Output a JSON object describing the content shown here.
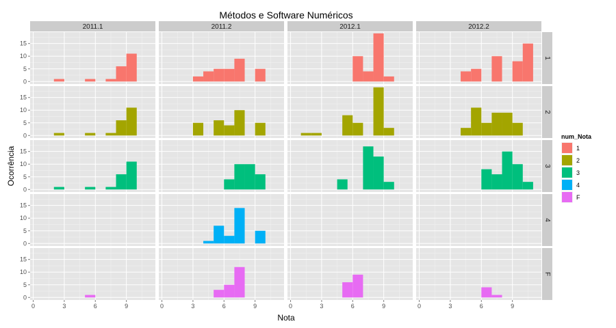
{
  "chart_data": {
    "type": "bar",
    "subtype": "faceted-histogram",
    "title": "Métodos e Software Numéricos",
    "xlabel": "Nota",
    "ylabel": "Ocorrência",
    "xlim": [
      -0.3,
      11.8
    ],
    "ylim": [
      -1,
      19.5
    ],
    "bin_width": 1,
    "x_ticks": [
      0,
      3,
      6,
      9
    ],
    "y_ticks": [
      0,
      5,
      10,
      15
    ],
    "column_facets": [
      "2011.1",
      "2011.2",
      "2012.1",
      "2012.2"
    ],
    "row_facets": [
      "1",
      "2",
      "3",
      "4",
      "F"
    ],
    "legend": {
      "title": "num_Nota",
      "position": "right",
      "entries": [
        {
          "label": "1",
          "color": "#F8766D"
        },
        {
          "label": "2",
          "color": "#A3A500"
        },
        {
          "label": "3",
          "color": "#00BF7D"
        },
        {
          "label": "4",
          "color": "#00B0F6"
        },
        {
          "label": "F",
          "color": "#E76BF3"
        }
      ]
    },
    "panel_background": "#E5E5E5",
    "strip_background": "#CCCCCC",
    "grid": true,
    "series": [
      {
        "row": "1",
        "col": "2011.1",
        "bins": [
          [
            2,
            1
          ],
          [
            5,
            1
          ],
          [
            7,
            1
          ],
          [
            8,
            6
          ],
          [
            9,
            11
          ]
        ]
      },
      {
        "row": "1",
        "col": "2011.2",
        "bins": [
          [
            3,
            2
          ],
          [
            4,
            4
          ],
          [
            5,
            5
          ],
          [
            6,
            5
          ],
          [
            7,
            9
          ],
          [
            9,
            5
          ]
        ]
      },
      {
        "row": "1",
        "col": "2012.1",
        "bins": [
          [
            6,
            10
          ],
          [
            7,
            4
          ],
          [
            8,
            19
          ],
          [
            9,
            2
          ]
        ]
      },
      {
        "row": "1",
        "col": "2012.2",
        "bins": [
          [
            4,
            4
          ],
          [
            5,
            5
          ],
          [
            7,
            10
          ],
          [
            9,
            8
          ],
          [
            10,
            15
          ]
        ]
      },
      {
        "row": "2",
        "col": "2011.1",
        "bins": [
          [
            2,
            1
          ],
          [
            5,
            1
          ],
          [
            7,
            1
          ],
          [
            8,
            6
          ],
          [
            9,
            11
          ]
        ]
      },
      {
        "row": "2",
        "col": "2011.2",
        "bins": [
          [
            3,
            5
          ],
          [
            5,
            6
          ],
          [
            6,
            4
          ],
          [
            7,
            10
          ],
          [
            9,
            5
          ]
        ]
      },
      {
        "row": "2",
        "col": "2012.1",
        "bins": [
          [
            1,
            1
          ],
          [
            2,
            1
          ],
          [
            5,
            8
          ],
          [
            6,
            5
          ],
          [
            8,
            19
          ],
          [
            9,
            3
          ]
        ]
      },
      {
        "row": "2",
        "col": "2012.2",
        "bins": [
          [
            4,
            3
          ],
          [
            5,
            11
          ],
          [
            6,
            5
          ],
          [
            7,
            9
          ],
          [
            8,
            9
          ],
          [
            9,
            5
          ]
        ]
      },
      {
        "row": "3",
        "col": "2011.1",
        "bins": [
          [
            2,
            1
          ],
          [
            5,
            1
          ],
          [
            7,
            1
          ],
          [
            8,
            6
          ],
          [
            9,
            11
          ]
        ]
      },
      {
        "row": "3",
        "col": "2011.2",
        "bins": [
          [
            6,
            4
          ],
          [
            7,
            10
          ],
          [
            8,
            10
          ],
          [
            9,
            6
          ]
        ]
      },
      {
        "row": "3",
        "col": "2012.1",
        "bins": [
          [
            4.5,
            4
          ],
          [
            7,
            17
          ],
          [
            8,
            13
          ],
          [
            9,
            3
          ]
        ]
      },
      {
        "row": "3",
        "col": "2012.2",
        "bins": [
          [
            6,
            8
          ],
          [
            7,
            6
          ],
          [
            8,
            15
          ],
          [
            9,
            10
          ],
          [
            10,
            3
          ]
        ]
      },
      {
        "row": "4",
        "col": "2011.1",
        "bins": []
      },
      {
        "row": "4",
        "col": "2011.2",
        "bins": [
          [
            4,
            1
          ],
          [
            5,
            7
          ],
          [
            6,
            3
          ],
          [
            7,
            14
          ],
          [
            9,
            5
          ]
        ]
      },
      {
        "row": "4",
        "col": "2012.1",
        "bins": []
      },
      {
        "row": "4",
        "col": "2012.2",
        "bins": []
      },
      {
        "row": "F",
        "col": "2011.1",
        "bins": [
          [
            5,
            1
          ]
        ]
      },
      {
        "row": "F",
        "col": "2011.2",
        "bins": [
          [
            5,
            3
          ],
          [
            6,
            5
          ],
          [
            7,
            12
          ]
        ]
      },
      {
        "row": "F",
        "col": "2012.1",
        "bins": [
          [
            5,
            6
          ],
          [
            6,
            9
          ]
        ]
      },
      {
        "row": "F",
        "col": "2012.2",
        "bins": [
          [
            6,
            4
          ],
          [
            7,
            1
          ]
        ]
      }
    ]
  }
}
